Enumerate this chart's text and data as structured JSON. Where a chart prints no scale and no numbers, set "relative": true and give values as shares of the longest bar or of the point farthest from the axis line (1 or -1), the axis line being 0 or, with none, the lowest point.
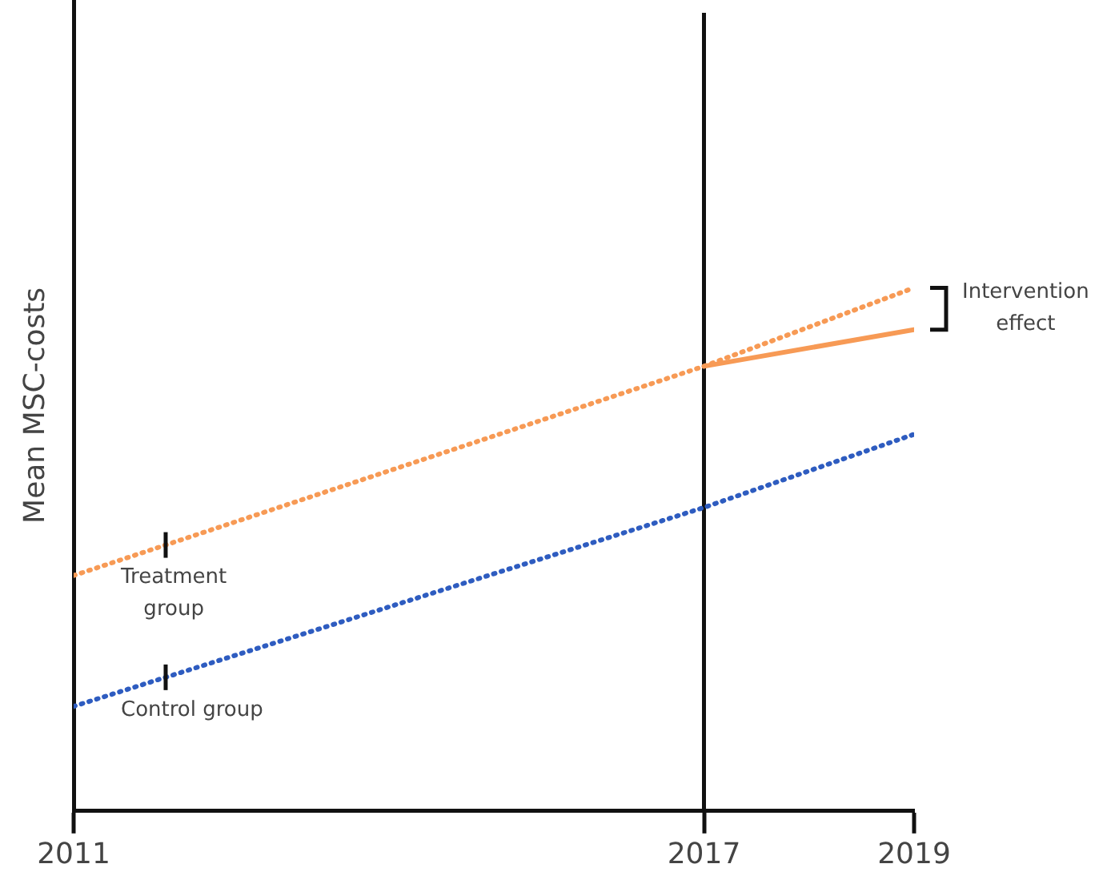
{
  "chart_data": {
    "type": "line",
    "relative": true,
    "ylabel": "Mean MSC-costs",
    "xlim": [
      2011,
      2019
    ],
    "xticks": [
      2011,
      2017,
      2019
    ],
    "series": [
      {
        "name": "Treatment group",
        "color": "#f79a55",
        "x": [
          2011,
          2017,
          2019
        ],
        "values": [
          0.45,
          0.85,
          1
        ],
        "line_style": "dotted"
      },
      {
        "color": "#f79a55",
        "x": [
          2017,
          2019
        ],
        "values": [
          0.85,
          0.92
        ],
        "line_style": "solid"
      },
      {
        "name": "Control group",
        "color": "#2e5cc0",
        "x": [
          2011,
          2017,
          2019
        ],
        "values": [
          0.2,
          0.58,
          0.72
        ],
        "line_style": "dotted"
      }
    ],
    "ref_lines": [
      {
        "axis": "x",
        "value": 2017,
        "color": "#111111"
      }
    ],
    "annotations": [
      "Intervention effect"
    ],
    "grid": false,
    "legend": false,
    "marker": "none"
  }
}
